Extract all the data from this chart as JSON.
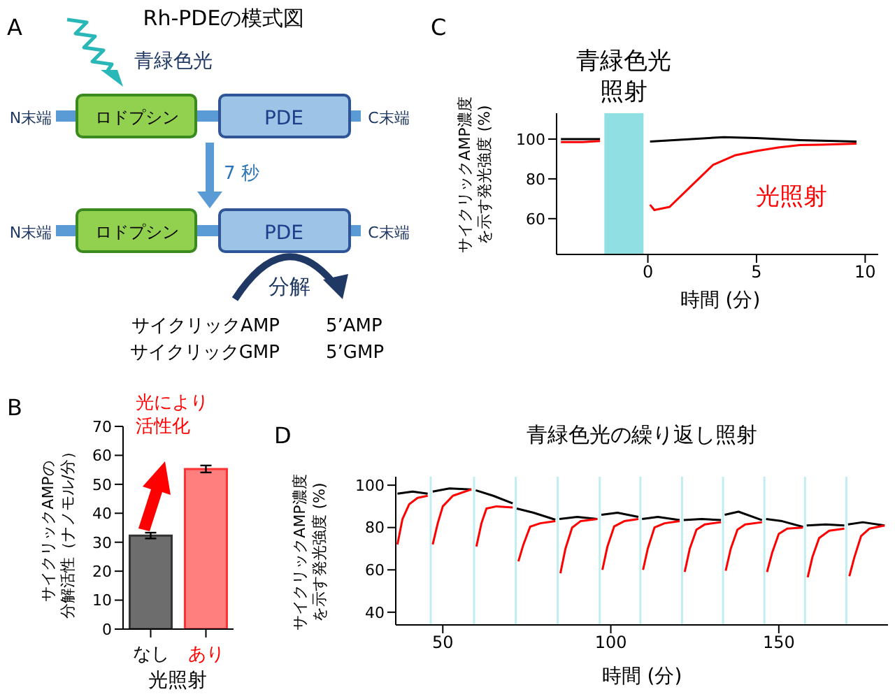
{
  "chart_data": [
    {
      "type": "other",
      "title": "Rh-PDEの模式図",
      "annotations": [
        "A",
        "青緑色光",
        "N末端",
        "ロドプシン",
        "PDE",
        "C末端",
        "7 秒",
        "N末端",
        "ロドプシン",
        "PDE",
        "C末端",
        "分解",
        "サイクリックAMP",
        "サイクリックGMP",
        "5’AMP",
        "5’GMP"
      ]
    },
    {
      "type": "line",
      "annotations": [
        "C"
      ],
      "xlabel": "時間 (分)",
      "ylabel": "サイクリックAMP濃度を示す発光強度 (%)",
      "xlim": [
        -4.2,
        10.6
      ],
      "ylim": [
        42,
        113
      ],
      "xticks": [
        0,
        5,
        10
      ],
      "yticks": [
        60,
        80,
        100
      ],
      "bands": [
        {
          "axis": "x",
          "from": -2,
          "to": -0.2,
          "label": "青緑色光照射",
          "color": "#8fdfe3"
        }
      ],
      "series": [
        {
          "color": "#000000",
          "x": [
            -4,
            -3,
            -2.2,
            -1.5,
            0.1,
            2,
            3.5,
            5,
            7,
            9.6
          ],
          "values": [
            100,
            100,
            100,
            null,
            98.8,
            100,
            101,
            100.5,
            99.5,
            98.8
          ]
        },
        {
          "name": "光照射",
          "color": "#ff0000",
          "x": [
            -4,
            -3,
            -2.2,
            -1.5,
            0.1,
            0.3,
            1,
            2,
            3,
            4,
            5,
            6,
            7,
            8,
            9.6
          ],
          "values": [
            98.5,
            98.5,
            99,
            null,
            67,
            64.3,
            65.9,
            76.5,
            87,
            91.8,
            94,
            95.8,
            97,
            97.2,
            97.7
          ]
        }
      ]
    },
    {
      "type": "bar",
      "annotations": [
        "B",
        "光により活性化"
      ],
      "xlabel": "光照射",
      "ylabel": "サイクリックAMPの分解活性（ナノモル/分）",
      "categories": [
        "なし",
        "あり"
      ],
      "values": [
        32.3,
        55.3
      ],
      "errors": [
        1.0,
        1.2
      ],
      "colors": [
        "#6d6d6d",
        "#ff7f7f"
      ],
      "ylim": [
        0,
        70
      ],
      "yticks": [
        0,
        10,
        20,
        30,
        40,
        50,
        60,
        70
      ]
    },
    {
      "type": "line",
      "title": "青緑色光の繰り返し照射",
      "annotations": [
        "D"
      ],
      "xlabel": "時間 (分)",
      "ylabel": "サイクリックAMP濃度を示す発光強度 (%)",
      "xlim": [
        36,
        182.5
      ],
      "ylim": [
        34,
        104
      ],
      "xticks": [
        50,
        100,
        150
      ],
      "yticks": [
        40,
        60,
        80,
        100
      ],
      "bands": [
        {
          "axis": "x",
          "from": 46.1,
          "to": 46.7,
          "color": "#bfeef0"
        },
        {
          "axis": "x",
          "from": 59,
          "to": 59.6,
          "color": "#bfeef0"
        },
        {
          "axis": "x",
          "from": 71.4,
          "to": 72,
          "color": "#bfeef0"
        },
        {
          "axis": "x",
          "from": 83.9,
          "to": 84.5,
          "color": "#bfeef0"
        },
        {
          "axis": "x",
          "from": 96.4,
          "to": 97,
          "color": "#bfeef0"
        },
        {
          "axis": "x",
          "from": 108.5,
          "to": 109.1,
          "color": "#bfeef0"
        },
        {
          "axis": "x",
          "from": 120.9,
          "to": 121.5,
          "color": "#bfeef0"
        },
        {
          "axis": "x",
          "from": 133.1,
          "to": 133.7,
          "color": "#bfeef0"
        },
        {
          "axis": "x",
          "from": 145.4,
          "to": 146,
          "color": "#bfeef0"
        },
        {
          "axis": "x",
          "from": 157.5,
          "to": 158.1,
          "color": "#bfeef0"
        },
        {
          "axis": "x",
          "from": 169.8,
          "to": 170.4,
          "color": "#bfeef0"
        }
      ],
      "series": [
        {
          "color": "#000000",
          "x": [
            36.5,
            41,
            45.5,
            46,
            47,
            52,
            58.5,
            59,
            59.8,
            65,
            70.8,
            71.5,
            72,
            77,
            83.5,
            84,
            84.7,
            90,
            96,
            96.5,
            97.2,
            102,
            108.2,
            108.6,
            109.3,
            114,
            120.5,
            121,
            121.7,
            127,
            132.8,
            133.2,
            133.9,
            138,
            145,
            145.5,
            146.2,
            151,
            157.2,
            157.6,
            158.3,
            164,
            169.5,
            170,
            170.6,
            175,
            181.5
          ],
          "values": [
            96,
            97,
            96,
            null,
            97,
            98.5,
            98,
            null,
            97.6,
            95,
            91.4,
            null,
            89,
            87,
            83.7,
            null,
            84,
            85,
            84,
            null,
            86,
            87,
            85,
            null,
            84,
            85,
            83.5,
            null,
            83.5,
            84,
            83.5,
            null,
            86,
            87.5,
            83.5,
            null,
            84,
            83,
            80.3,
            null,
            81,
            81.5,
            81,
            null,
            81.5,
            82.5,
            81
          ]
        },
        {
          "color": "#ff0000",
          "x": [
            36.5,
            38,
            40,
            42.5,
            45.5,
            46,
            47,
            48.5,
            50,
            53,
            58.5,
            59,
            60,
            61.5,
            63,
            66,
            70.8,
            71.5,
            72.5,
            74,
            76,
            79,
            83.5,
            84,
            85,
            86.5,
            88.5,
            91,
            96,
            96.5,
            97.5,
            99,
            101,
            104,
            108.2,
            108.6,
            109.6,
            111,
            113,
            116,
            120.5,
            121,
            122,
            123.5,
            125.5,
            128,
            132.8,
            133.2,
            134.2,
            135.7,
            137.7,
            140,
            145,
            145.5,
            146.5,
            148,
            150,
            152.5,
            157.2,
            157.6,
            158.6,
            160,
            162,
            165,
            169.5,
            170,
            171,
            172.5,
            174.5,
            177,
            181.5
          ],
          "values": [
            72,
            84,
            91,
            94,
            95,
            null,
            72,
            82,
            90,
            95,
            98,
            null,
            71,
            82,
            89,
            90,
            89.5,
            null,
            64,
            72,
            80.4,
            82,
            83,
            null,
            58.4,
            70,
            80,
            83,
            84,
            null,
            60,
            71,
            80.5,
            83,
            84,
            null,
            60,
            70,
            80,
            82,
            83,
            null,
            59,
            70,
            79,
            81.5,
            82.5,
            null,
            59.6,
            70,
            79,
            81.5,
            82.5,
            null,
            59,
            68,
            77,
            79.5,
            80,
            null,
            56.5,
            66,
            75,
            78.5,
            79.5,
            null,
            57,
            66,
            76,
            79.5,
            81
          ]
        }
      ]
    }
  ]
}
